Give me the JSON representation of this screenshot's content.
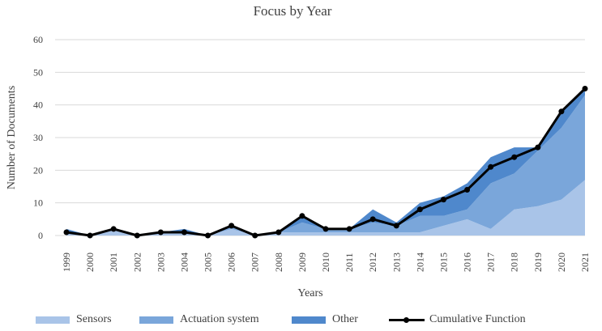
{
  "chart_data": {
    "type": "area",
    "title": "Focus by Year",
    "xlabel": "Years",
    "ylabel": "Number of Documents",
    "ylim": [
      0,
      60
    ],
    "yticks": [
      0,
      10,
      20,
      30,
      40,
      50,
      60
    ],
    "grid": true,
    "legend_position": "bottom",
    "categories": [
      "1999",
      "2000",
      "2001",
      "2002",
      "2003",
      "2004",
      "2005",
      "2006",
      "2007",
      "2008",
      "2009",
      "2010",
      "2011",
      "2012",
      "2013",
      "2014",
      "2015",
      "2016",
      "2017",
      "2018",
      "2019",
      "2020",
      "2021"
    ],
    "stacked": true,
    "series": [
      {
        "name": "Sensors",
        "color": "#a9c4e8",
        "values": [
          1,
          0,
          2,
          0,
          1,
          1,
          0,
          2,
          0,
          1,
          1,
          1,
          1,
          1,
          1,
          1,
          3,
          5,
          2,
          8,
          9,
          11,
          17
        ]
      },
      {
        "name": "Actuation system",
        "color": "#7aa6da",
        "values": [
          0,
          0,
          0,
          0,
          0,
          0,
          0,
          1,
          0,
          0,
          3,
          1,
          1,
          3,
          2,
          5,
          3,
          3,
          14,
          11,
          17,
          22,
          26
        ]
      },
      {
        "name": "Other",
        "color": "#4f88cc",
        "values": [
          1,
          0,
          0,
          0,
          0,
          1,
          0,
          0,
          0,
          0,
          2,
          0,
          0,
          4,
          1,
          4,
          6,
          8,
          8,
          8,
          1,
          5,
          2
        ]
      },
      {
        "name": "Cumulative Function",
        "type": "line",
        "color": "#000000",
        "values": [
          1,
          0,
          2,
          0,
          1,
          1,
          0,
          3,
          0,
          1,
          6,
          2,
          2,
          5,
          3,
          8,
          11,
          14,
          21,
          24,
          27,
          38,
          45
        ]
      }
    ]
  }
}
